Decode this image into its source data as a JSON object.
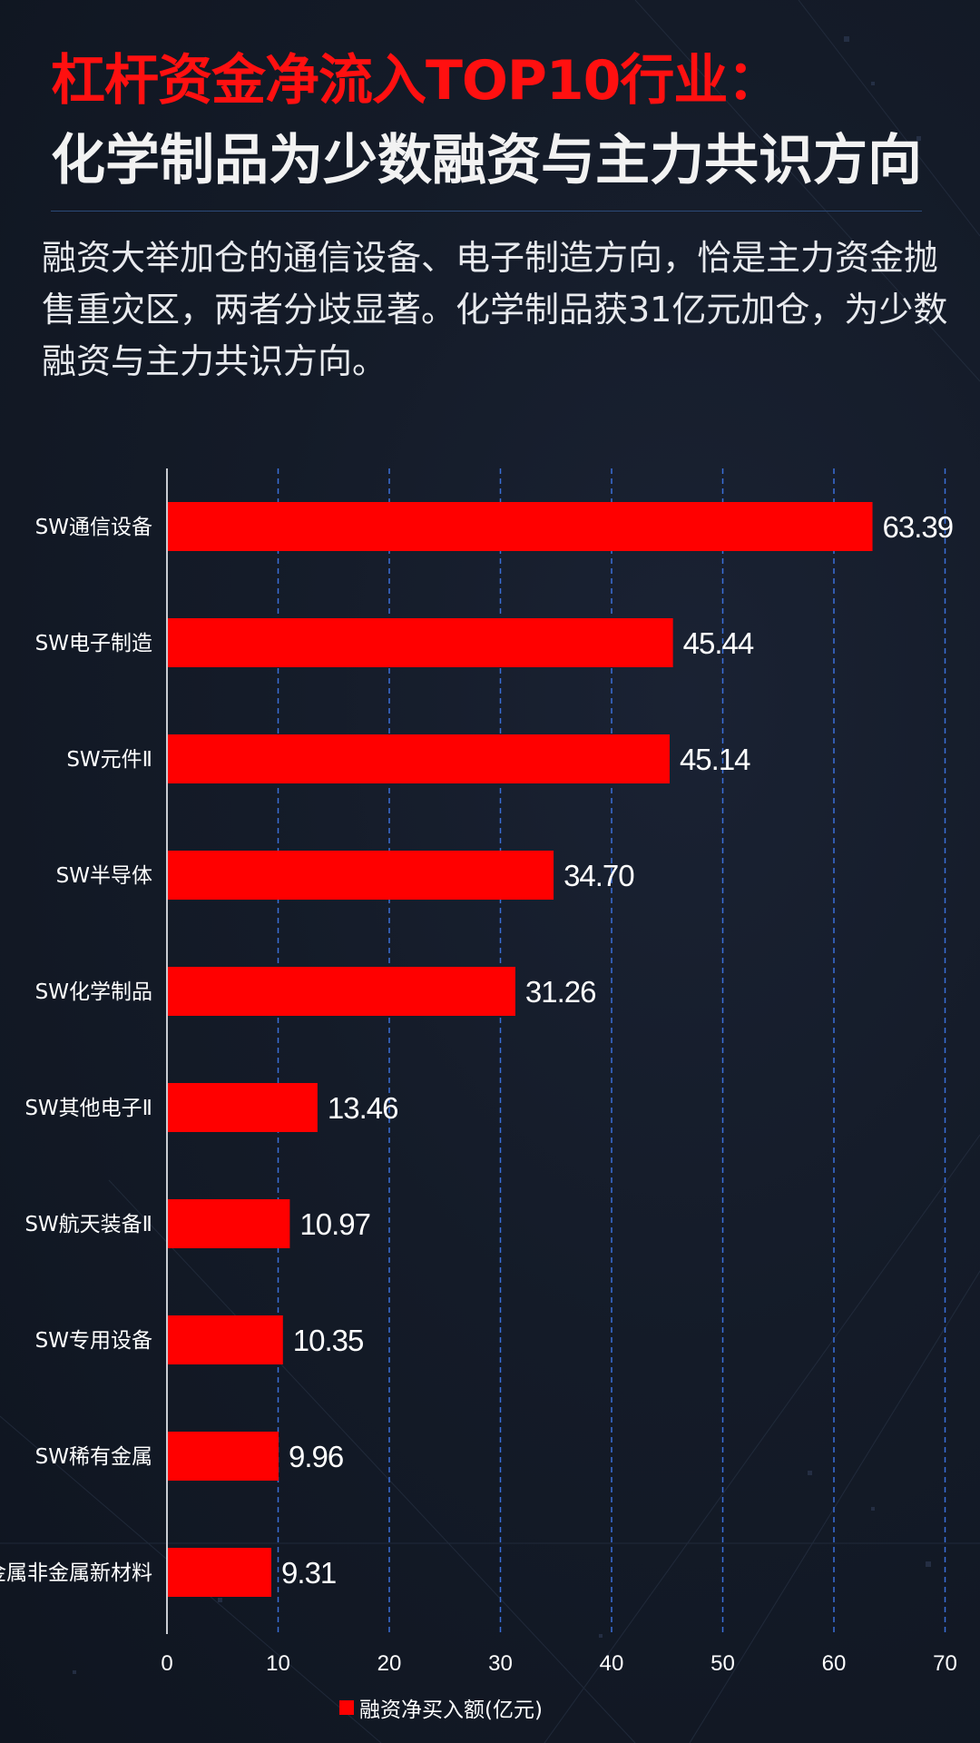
{
  "header": {
    "title_line1": "杠杆资金净流入TOP10行业：",
    "title_line2": "化学制品为少数融资与主力共识方向"
  },
  "description": "融资大举加仓的通信设备、电子制造方向，恰是主力资金抛售重灾区，两者分歧显著。化学制品获31亿元加仓，为少数融资与主力共识方向。",
  "colors": {
    "bar": "#ff0000",
    "title_accent": "#ff1010",
    "grid": "#3a6fd8",
    "background": "#141b28"
  },
  "chart_data": {
    "type": "bar",
    "orientation": "horizontal",
    "categories": [
      "SW通信设备",
      "SW电子制造",
      "SW元件Ⅱ",
      "SW半导体",
      "SW化学制品",
      "SW其他电子Ⅱ",
      "SW航天装备Ⅱ",
      "SW专用设备",
      "SW稀有金属",
      "SW金属非金属新材料"
    ],
    "series": [
      {
        "name": "融资净买入额(亿元)",
        "values": [
          63.39,
          45.44,
          45.14,
          34.7,
          31.26,
          13.46,
          10.97,
          10.35,
          9.96,
          9.31
        ],
        "labels": [
          "63.39",
          "45.44",
          "45.14",
          "34.70",
          "31.26",
          "13.46",
          "10.97",
          "10.35",
          "9.96",
          "9.31"
        ]
      }
    ],
    "xlim": [
      0,
      70
    ],
    "xticks": [
      0,
      10,
      20,
      30,
      40,
      50,
      60,
      70
    ],
    "grid": "vertical-dashed",
    "legend_position": "bottom-center"
  }
}
